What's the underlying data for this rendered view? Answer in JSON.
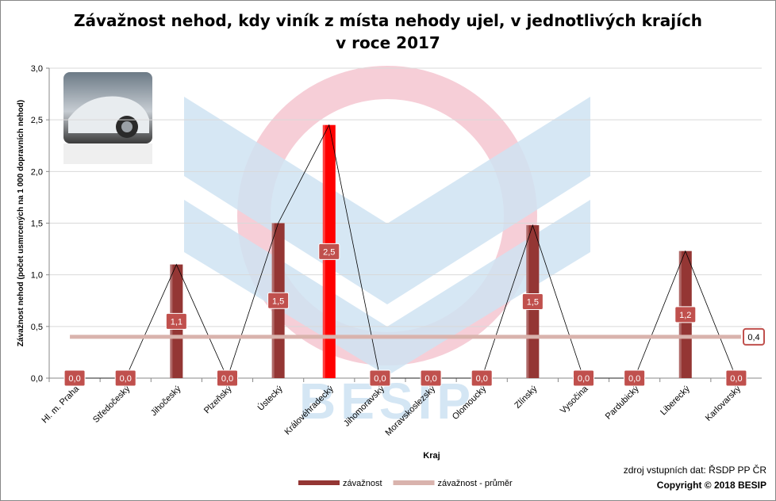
{
  "title_line1": "Závažnost nehod, kdy viník z místa nehody ujel, v jednotlivých krajích",
  "title_line2": "v roce 2017",
  "source": "zdroj vstupních dat: ŘSDP PP ČR",
  "copyright": "Copyright © 2018  BESIP",
  "watermark": "BESIP",
  "colors": {
    "bar": "#943634",
    "bar_highlight": "#ff0000",
    "avg_line": "#d9b3ad",
    "label_bg": "#c0504d",
    "grid": "#d9d9d9"
  },
  "chart_data": {
    "type": "bar",
    "title": "Závažnost nehod, kdy viník z místa nehody ujel, v jednotlivých krajích v roce 2017",
    "xlabel": "Kraj",
    "ylabel": "Závažnost  nehod  (počet usmrcených  na 1 000 dopravních nehod)",
    "ylim": [
      0,
      3.0
    ],
    "yticks": [
      "0,0",
      "0,5",
      "1,0",
      "1,5",
      "2,0",
      "2,5",
      "3,0"
    ],
    "grid": true,
    "legend_position": "bottom",
    "categories": [
      "Hl. m. Praha",
      "Středočeský",
      "Jihočeský",
      "Plzeňský",
      "Ústecký",
      "Královéhradecký",
      "Jihomoravský",
      "Moravskoslezský",
      "Olomoucký",
      "Zlínský",
      "Vysočina",
      "Pardubický",
      "Liberecký",
      "Karlovarský"
    ],
    "series": [
      {
        "name": "závažnost",
        "values": [
          0.0,
          0.0,
          1.1,
          0.0,
          1.5,
          2.45,
          0.0,
          0.0,
          0.0,
          1.48,
          0.0,
          0.0,
          1.23,
          0.0
        ],
        "labels": [
          "0,0",
          "0,0",
          "1,1",
          "0,0",
          "1,5",
          "2,5",
          "0,0",
          "0,0",
          "0,0",
          "1,5",
          "0,0",
          "0,0",
          "1,2",
          "0,0"
        ],
        "highlight_index": 5
      },
      {
        "name": "závažnost - průměr",
        "value": 0.4,
        "label": "0,4"
      }
    ]
  }
}
